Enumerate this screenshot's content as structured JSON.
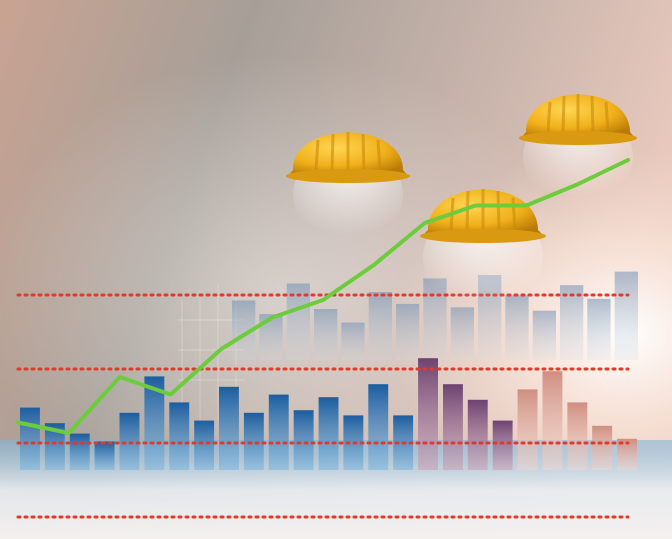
{
  "image": {
    "subject": "construction-industry-growth-illustration",
    "colors": {
      "helmet": "#f2b41c",
      "helmet_shadow": "#c98a0b",
      "trend_line": "#6ccc3c",
      "dotted_line": "#e23a2a",
      "bar_blue": "#1f5f9f",
      "bar_mauve": "#7b4f7a",
      "bar_peach": "#d49c8a",
      "bg_warm": "#c7a28f",
      "bg_gray": "#9d9a96"
    }
  },
  "bars": {
    "front": [
      {
        "height": 0.24,
        "tone": "blue"
      },
      {
        "height": 0.18,
        "tone": "blue"
      },
      {
        "height": 0.14,
        "tone": "blue"
      },
      {
        "height": 0.11,
        "tone": "blue"
      },
      {
        "height": 0.22,
        "tone": "blue"
      },
      {
        "height": 0.36,
        "tone": "blue"
      },
      {
        "height": 0.26,
        "tone": "blue"
      },
      {
        "height": 0.19,
        "tone": "blue"
      },
      {
        "height": 0.32,
        "tone": "blue"
      },
      {
        "height": 0.22,
        "tone": "blue"
      },
      {
        "height": 0.29,
        "tone": "blue"
      },
      {
        "height": 0.23,
        "tone": "blue"
      },
      {
        "height": 0.28,
        "tone": "blue"
      },
      {
        "height": 0.21,
        "tone": "blue"
      },
      {
        "height": 0.33,
        "tone": "blue"
      },
      {
        "height": 0.21,
        "tone": "blue"
      },
      {
        "height": 0.43,
        "tone": "mauve"
      },
      {
        "height": 0.33,
        "tone": "mauve"
      },
      {
        "height": 0.27,
        "tone": "mauve"
      },
      {
        "height": 0.19,
        "tone": "mauve"
      },
      {
        "height": 0.31,
        "tone": "peach"
      },
      {
        "height": 0.38,
        "tone": "peach"
      },
      {
        "height": 0.26,
        "tone": "peach"
      },
      {
        "height": 0.17,
        "tone": "peach"
      },
      {
        "height": 0.12,
        "tone": "peach"
      }
    ],
    "back": [
      {
        "height": 0.35
      },
      {
        "height": 0.27
      },
      {
        "height": 0.45
      },
      {
        "height": 0.3
      },
      {
        "height": 0.22
      },
      {
        "height": 0.4
      },
      {
        "height": 0.33
      },
      {
        "height": 0.48
      },
      {
        "height": 0.31
      },
      {
        "height": 0.5
      },
      {
        "height": 0.38
      },
      {
        "height": 0.29
      },
      {
        "height": 0.44
      },
      {
        "height": 0.36
      },
      {
        "height": 0.52
      }
    ]
  },
  "trend_line": {
    "values": [
      0.25,
      0.22,
      0.38,
      0.33,
      0.46,
      0.55,
      0.6,
      0.7,
      0.82,
      0.87,
      0.87,
      0.93,
      1.0
    ]
  },
  "dotted_lines": {
    "count": 4
  },
  "helmets": {
    "count": 3
  }
}
